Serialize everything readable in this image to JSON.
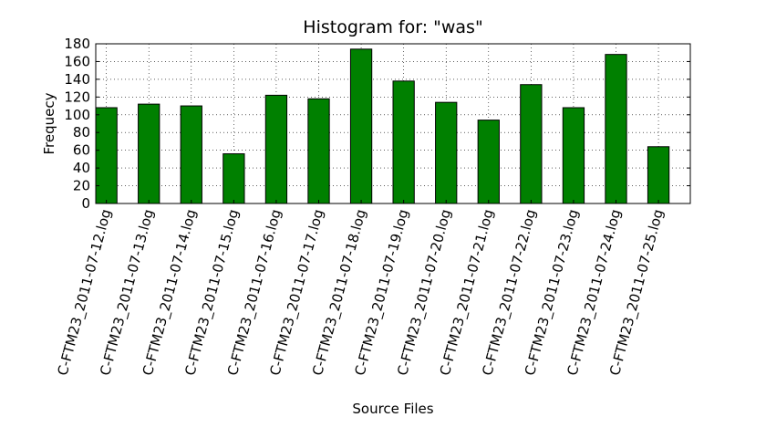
{
  "chart_data": {
    "type": "bar",
    "title": "Histogram for: \"was\"",
    "xlabel": "Source Files",
    "ylabel": "Frequecy",
    "ylim": [
      0,
      180
    ],
    "yticks": [
      0,
      20,
      40,
      60,
      80,
      100,
      120,
      140,
      160,
      180
    ],
    "grid": true,
    "bar_color": "#008000",
    "categories": [
      "C-FTM23_2011-07-12.log",
      "C-FTM23_2011-07-13.log",
      "C-FTM23_2011-07-14.log",
      "C-FTM23_2011-07-15.log",
      "C-FTM23_2011-07-16.log",
      "C-FTM23_2011-07-17.log",
      "C-FTM23_2011-07-18.log",
      "C-FTM23_2011-07-19.log",
      "C-FTM23_2011-07-20.log",
      "C-FTM23_2011-07-21.log",
      "C-FTM23_2011-07-22.log",
      "C-FTM23_2011-07-23.log",
      "C-FTM23_2011-07-24.log",
      "C-FTM23_2011-07-25.log"
    ],
    "values": [
      108,
      112,
      110,
      56,
      122,
      118,
      174,
      138,
      114,
      94,
      134,
      108,
      168,
      64
    ]
  }
}
